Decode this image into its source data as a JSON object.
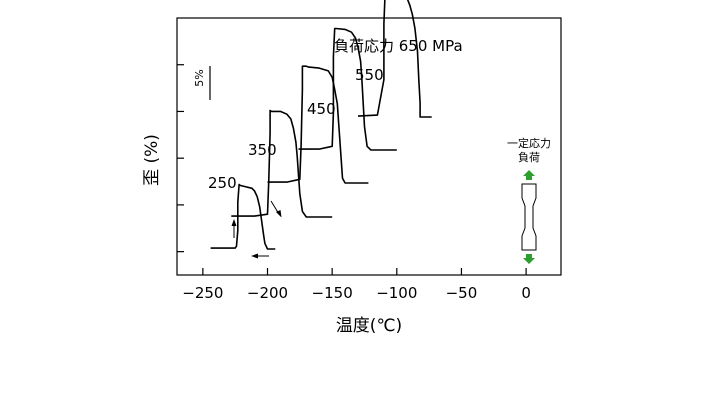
{
  "chart_data": {
    "type": "line",
    "xlabel": "温度(℃)",
    "ylabel": "歪 (%)",
    "xlim": [
      -270,
      27
    ],
    "ylim": [
      -2.5,
      25
    ],
    "x_ticks": [
      -250,
      -200,
      -150,
      -100,
      -50,
      0
    ],
    "x_tick_labels": [
      "−250",
      "−200",
      "−150",
      "−100",
      "−50",
      "0"
    ],
    "y_ticks": [
      0,
      5,
      10,
      15,
      20
    ],
    "scale_bar": {
      "label": "5%",
      "value": 5
    },
    "series": [
      {
        "name": "250",
        "prefix": "",
        "x": [
          -194,
          -200,
          -202,
          -203,
          -204,
          -205,
          -206,
          -208,
          -210,
          -212,
          -218,
          -221,
          -222,
          -222,
          -223,
          -223,
          -224,
          -225,
          -235,
          -244
        ],
        "y": [
          0,
          0.0,
          0.6,
          1.5,
          2.5,
          3.5,
          4.5,
          5.6,
          6.2,
          6.5,
          6.7,
          6.8,
          6.9,
          6.9,
          5,
          2,
          0.3,
          0.1,
          0.1,
          0.1
        ]
      },
      {
        "name": "350",
        "prefix": "",
        "x": [
          -150,
          -170,
          -173,
          -175,
          -176,
          -177,
          -178,
          -180,
          -182,
          -185,
          -190,
          -197,
          -198,
          -198,
          -199,
          -200,
          -210,
          -228
        ],
        "y": [
          0,
          0.0,
          0.6,
          2.5,
          4.5,
          6.5,
          8,
          9.5,
          10.5,
          11,
          11.3,
          11.3,
          11.4,
          9,
          4,
          0.3,
          0.1,
          0.1
        ]
      },
      {
        "name": "450",
        "prefix": "",
        "x": [
          -122,
          -140,
          -142,
          -143,
          -144,
          -145,
          -146,
          -148,
          -150,
          -153,
          -160,
          -168,
          -170,
          -172,
          -173,
          -173,
          -174,
          -175,
          -185,
          -200
        ],
        "y": [
          0,
          0.0,
          0.5,
          2.5,
          4.5,
          6.5,
          8.5,
          10,
          11.3,
          12,
          12.3,
          12.4,
          12.5,
          12.5,
          12.5,
          10,
          4,
          0.4,
          0.1,
          0.1
        ]
      },
      {
        "name": "550",
        "prefix": "",
        "x": [
          -100,
          -120,
          -123,
          -125,
          -126,
          -127,
          -128,
          -130,
          -132,
          -135,
          -140,
          -147,
          -148,
          -149,
          -149,
          -150,
          -160,
          -176
        ],
        "y": [
          0,
          0.0,
          0.4,
          2.5,
          5,
          7.5,
          9.5,
          11,
          12,
          12.6,
          12.9,
          13,
          13,
          10,
          4,
          0.4,
          0.1,
          0.1
        ]
      },
      {
        "name": "650 MPa",
        "prefix": "負荷応力 ",
        "x": [
          -73,
          -82,
          -82,
          -82,
          -83,
          -84,
          -86,
          -88,
          -90,
          -92,
          -95,
          -100,
          -105,
          -108,
          -109,
          -110,
          -110,
          -115,
          -130
        ],
        "y": [
          0,
          0.0,
          0.1,
          1.5,
          4,
          7,
          9.5,
          11,
          12,
          12.7,
          13.1,
          13.3,
          13.4,
          13.5,
          13.5,
          10,
          4,
          0.2,
          0.1
        ]
      }
    ],
    "offsets_px": null,
    "inset": {
      "line1": "一定応力",
      "line2": "負荷"
    },
    "colors": {
      "line": "#000000",
      "arrow_green": "#2e9e2e"
    }
  }
}
